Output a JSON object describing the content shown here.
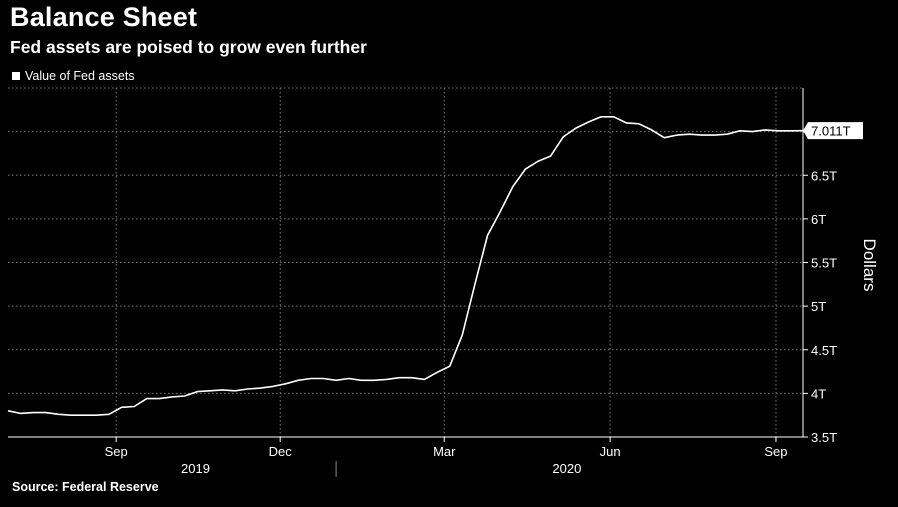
{
  "title": "Balance Sheet",
  "subtitle": "Fed assets are poised to grow even further",
  "legend": {
    "label": "Value of Fed assets"
  },
  "source": "Source: Federal Reserve",
  "last_value_label": "7.011T",
  "colors": {
    "background": "#000000",
    "line": "#ffffff",
    "grid": "#7a7a7a"
  },
  "chart_data": {
    "type": "line",
    "title": "Balance Sheet",
    "subtitle": "Fed assets are poised to grow even further",
    "ylabel": "Dollars",
    "y_unit": "trillions USD",
    "ylim": [
      3.5,
      7.5
    ],
    "y_ticks": [
      3.5,
      4,
      4.5,
      5,
      5.5,
      6,
      6.5,
      7
    ],
    "y_tick_labels": [
      "3.5T",
      "4T",
      "4.5T",
      "5T",
      "5.5T",
      "6T",
      "6.5T",
      "7T"
    ],
    "xlim": [
      "2019-07-03",
      "2020-09-16"
    ],
    "x_month_ticks": [
      {
        "date": "2019-09-01",
        "label": "Sep"
      },
      {
        "date": "2019-12-01",
        "label": "Dec"
      },
      {
        "date": "2020-03-01",
        "label": "Mar"
      },
      {
        "date": "2020-06-01",
        "label": "Jun"
      },
      {
        "date": "2020-09-01",
        "label": "Sep"
      }
    ],
    "x_year_labels": [
      {
        "label": "2019",
        "center": "2019-10-15"
      },
      {
        "label": "2020",
        "center": "2020-05-08"
      }
    ],
    "year_divider": "2020-01-01",
    "grid": true,
    "legend_position": "top-left",
    "series": [
      {
        "name": "Value of Fed assets",
        "x": [
          "2019-07-03",
          "2019-07-10",
          "2019-07-17",
          "2019-07-24",
          "2019-07-31",
          "2019-08-07",
          "2019-08-14",
          "2019-08-21",
          "2019-08-28",
          "2019-09-04",
          "2019-09-11",
          "2019-09-18",
          "2019-09-25",
          "2019-10-02",
          "2019-10-09",
          "2019-10-16",
          "2019-10-23",
          "2019-10-30",
          "2019-11-06",
          "2019-11-13",
          "2019-11-20",
          "2019-11-27",
          "2019-12-04",
          "2019-12-11",
          "2019-12-18",
          "2019-12-25",
          "2020-01-01",
          "2020-01-08",
          "2020-01-15",
          "2020-01-22",
          "2020-01-29",
          "2020-02-05",
          "2020-02-12",
          "2020-02-19",
          "2020-02-26",
          "2020-03-04",
          "2020-03-11",
          "2020-03-18",
          "2020-03-25",
          "2020-04-01",
          "2020-04-08",
          "2020-04-15",
          "2020-04-22",
          "2020-04-29",
          "2020-05-06",
          "2020-05-13",
          "2020-05-20",
          "2020-05-27",
          "2020-06-03",
          "2020-06-10",
          "2020-06-17",
          "2020-06-24",
          "2020-07-01",
          "2020-07-08",
          "2020-07-15",
          "2020-07-22",
          "2020-07-29",
          "2020-08-05",
          "2020-08-12",
          "2020-08-19",
          "2020-08-26",
          "2020-09-02",
          "2020-09-09",
          "2020-09-16"
        ],
        "values": [
          3.8,
          3.77,
          3.78,
          3.78,
          3.76,
          3.75,
          3.75,
          3.75,
          3.76,
          3.84,
          3.85,
          3.94,
          3.94,
          3.96,
          3.97,
          4.02,
          4.03,
          4.04,
          4.03,
          4.05,
          4.06,
          4.08,
          4.11,
          4.15,
          4.17,
          4.17,
          4.15,
          4.17,
          4.15,
          4.15,
          4.16,
          4.18,
          4.18,
          4.16,
          4.24,
          4.31,
          4.67,
          5.25,
          5.81,
          6.08,
          6.37,
          6.57,
          6.66,
          6.72,
          6.94,
          7.04,
          7.11,
          7.17,
          7.17,
          7.1,
          7.09,
          7.02,
          6.93,
          6.96,
          6.97,
          6.96,
          6.96,
          6.97,
          7.01,
          7.0,
          7.02,
          7.01,
          7.01,
          7.011
        ]
      }
    ]
  }
}
